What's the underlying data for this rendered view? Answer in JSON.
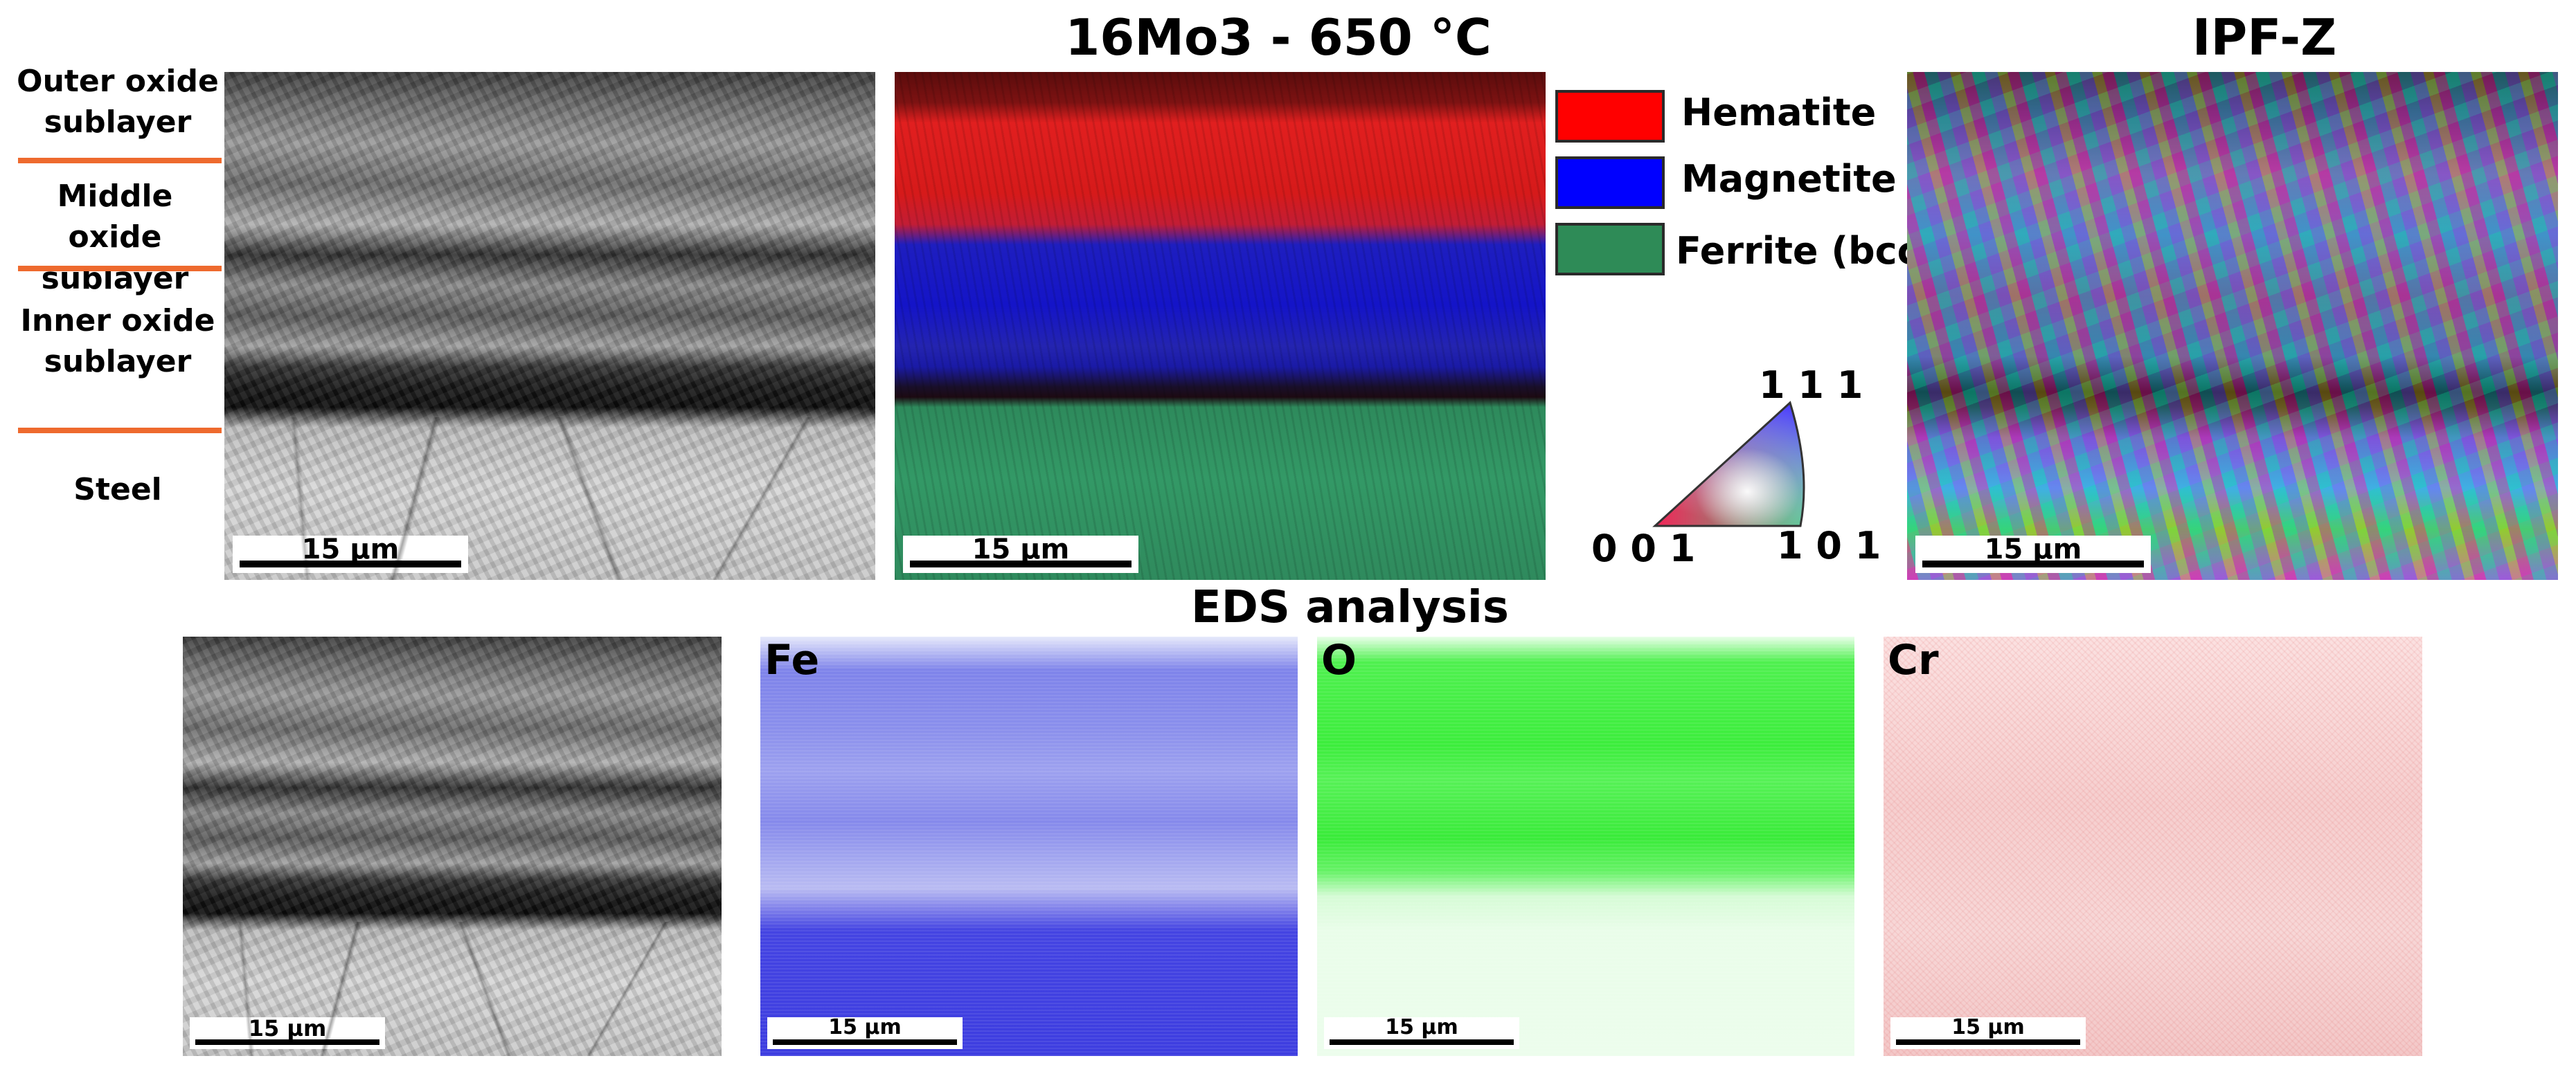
{
  "titles": {
    "main": "16Mo3 - 650 °C",
    "ipf": "IPF-Z",
    "eds": "EDS analysis"
  },
  "layers": [
    {
      "label": "Outer oxide sublayer"
    },
    {
      "label": "Middle oxide sublayer"
    },
    {
      "label": "Inner oxide sublayer"
    },
    {
      "label": "Steel"
    }
  ],
  "legend": [
    {
      "label": "Hematite",
      "color": "#ff0000"
    },
    {
      "label": "Magnetite",
      "color": "#0000ff"
    },
    {
      "label": "Ferrite (bcc)",
      "color": "#2e8b57"
    }
  ],
  "ipf_key": {
    "top": "1 1 1",
    "left": "0 0 1",
    "right": "1 0 1"
  },
  "scale_bar_label": "15 µm",
  "eds_maps": [
    {
      "element": "Fe",
      "color": "#3a3ae0"
    },
    {
      "element": "O",
      "color": "#33ee33"
    },
    {
      "element": "Cr",
      "color": "#f4c6c6"
    }
  ]
}
